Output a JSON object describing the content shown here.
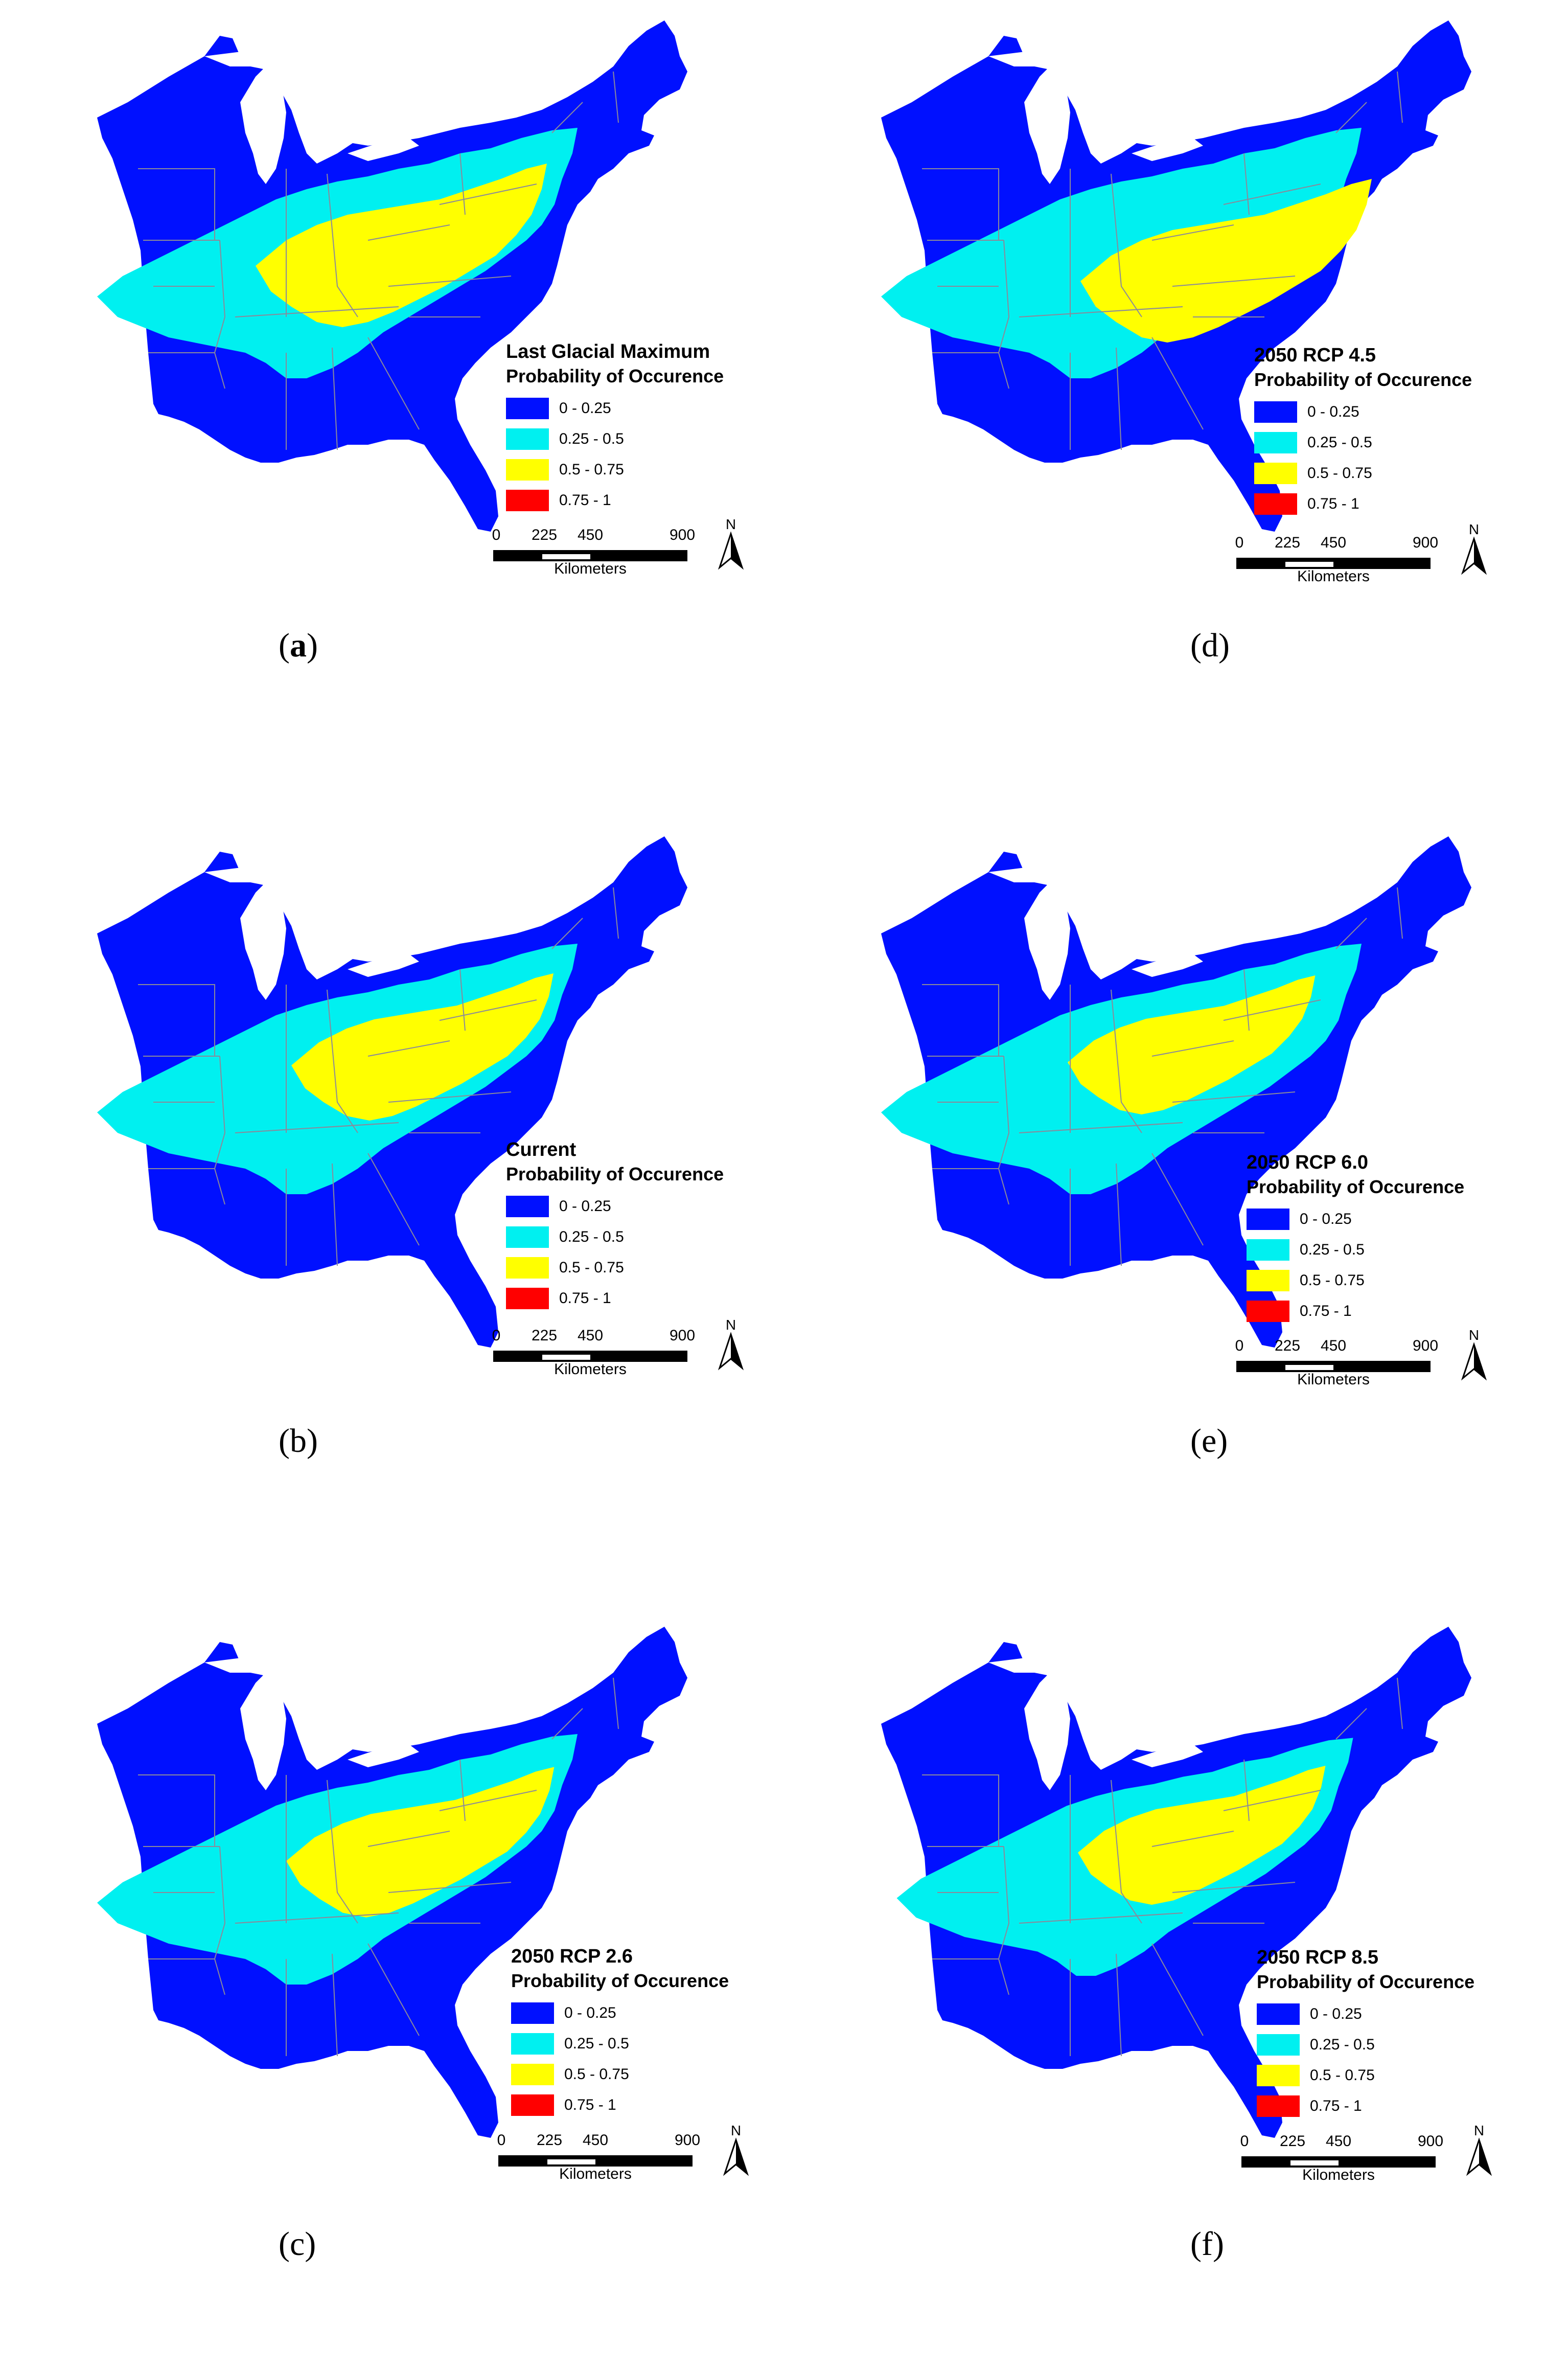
{
  "colors": {
    "blue": "#0010ff",
    "cyan": "#00f0f0",
    "yellow": "#ffff00",
    "red": "#ff0000"
  },
  "legend_common": {
    "subtitle": "Probability of Occurence",
    "classes": [
      {
        "label": "0 - 0.25",
        "color": "#0010ff",
        "min": 0,
        "max": 0.25
      },
      {
        "label": "0.25 - 0.5",
        "color": "#00f0f0",
        "min": 0.25,
        "max": 0.5
      },
      {
        "label": "0.5 - 0.75",
        "color": "#ffff00",
        "min": 0.5,
        "max": 0.75
      },
      {
        "label": "0.75 - 1",
        "color": "#ff0000",
        "min": 0.75,
        "max": 1
      }
    ]
  },
  "scale": {
    "ticks": [
      "0",
      "225",
      "450",
      "900"
    ],
    "unit": "Kilometers"
  },
  "north_label": "N",
  "panels": [
    {
      "id": "a",
      "label_prefix": "(",
      "label_letter": "a",
      "label_suffix": ")",
      "letter_bold": true,
      "title": "Last Glacial Maximum",
      "cyan_band_scale": 1.0,
      "yellow_scale": 1.0
    },
    {
      "id": "b",
      "label_prefix": "(",
      "label_letter": "b",
      "label_suffix": ")",
      "letter_bold": false,
      "title": "Current",
      "cyan_band_scale": 1.1,
      "yellow_scale": 0.85
    },
    {
      "id": "c",
      "label_prefix": "(",
      "label_letter": "c",
      "label_suffix": ")",
      "letter_bold": false,
      "title": "2050 RCP 2.6",
      "cyan_band_scale": 1.1,
      "yellow_scale": 0.9
    },
    {
      "id": "d",
      "label_prefix": "(",
      "label_letter": "d",
      "label_suffix": ")",
      "letter_bold": false,
      "title": "2050 RCP 4.5",
      "cyan_band_scale": 1.0,
      "yellow_scale": 1.0
    },
    {
      "id": "e",
      "label_prefix": "(",
      "label_letter": "e",
      "label_suffix": ")",
      "letter_bold": false,
      "title": "2050 RCP 6.0",
      "cyan_band_scale": 0.95,
      "yellow_scale": 0.8
    },
    {
      "id": "f",
      "label_prefix": "(",
      "label_letter": "f",
      "label_suffix": ")",
      "letter_bold": false,
      "title": "2050 RCP 8.5",
      "cyan_band_scale": 0.9,
      "yellow_scale": 0.85
    }
  ]
}
